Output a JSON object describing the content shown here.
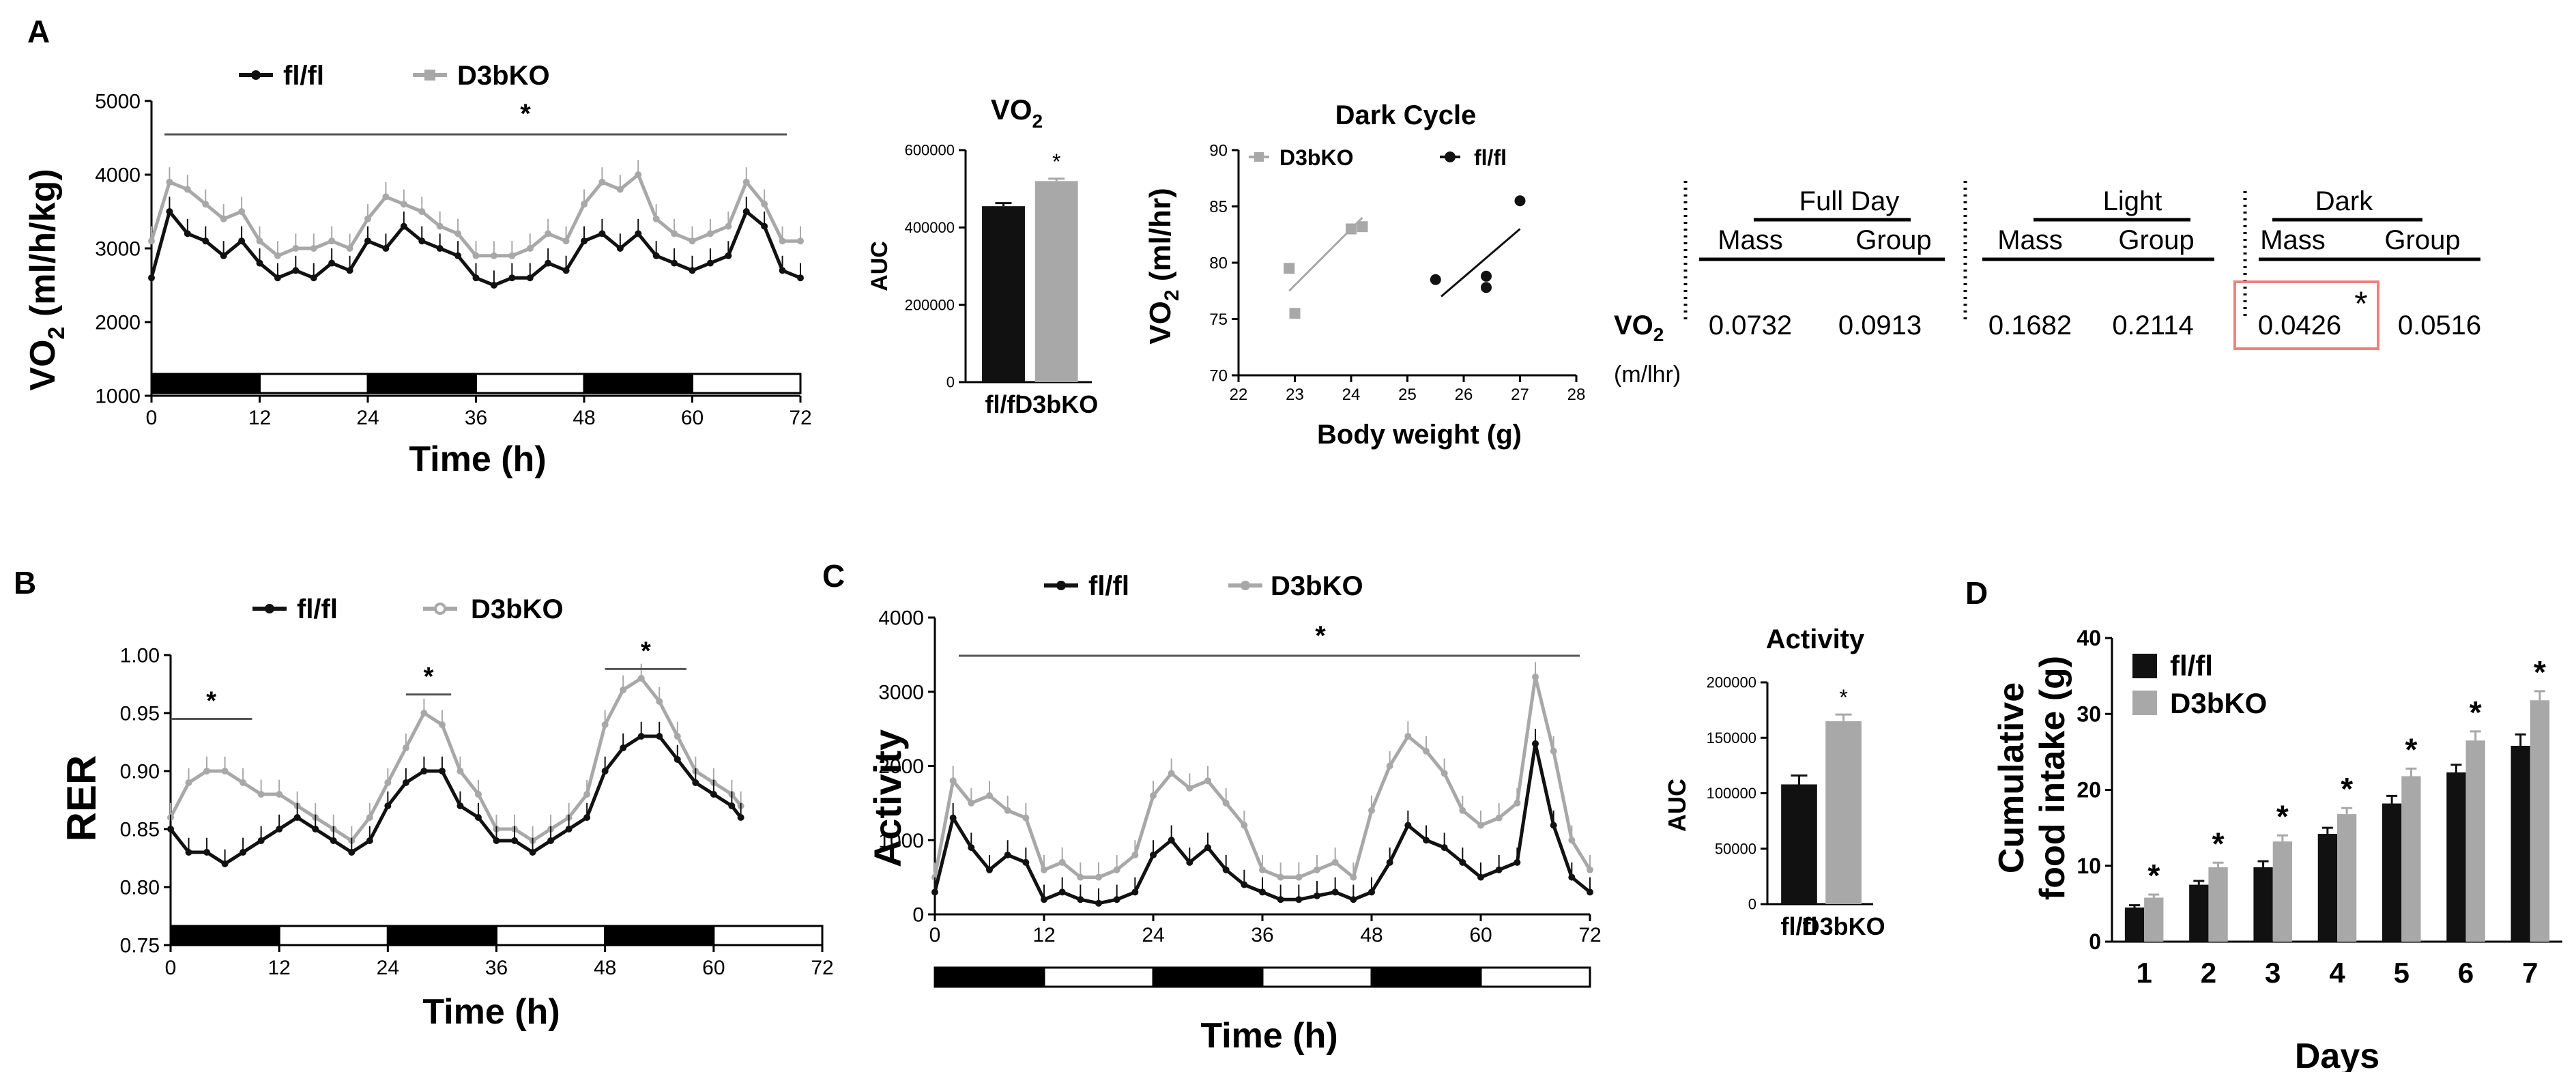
{
  "colors": {
    "flfl": "#111111",
    "d3bko": "#a8a8a8",
    "highlight": "#f08080"
  },
  "panel_letters": {
    "a": "A",
    "b": "B",
    "c": "C",
    "d": "D"
  },
  "chart_data": [
    {
      "id": "vo2_time",
      "type": "line",
      "ylabel": "VO2 (ml/h/kg)",
      "ylabel_base": "VO",
      "ylabel_sub": "2",
      "ylabel_rest": " (ml/h/kg)",
      "xlabel": "Time (h)",
      "xlim": [
        0,
        72
      ],
      "ylim": [
        1000,
        5000
      ],
      "xticks": [
        0,
        12,
        24,
        36,
        48,
        60,
        72
      ],
      "yticks": [
        1000,
        2000,
        3000,
        4000,
        5000
      ],
      "legend": [
        "fl/fl",
        "D3bKO"
      ],
      "significance": "*",
      "sig_span": [
        2,
        70
      ],
      "light_dark_bar": [
        "dark",
        "light",
        "dark",
        "light",
        "dark",
        "light"
      ],
      "series": [
        {
          "name": "fl/fl",
          "x": [
            0,
            2,
            4,
            6,
            8,
            10,
            12,
            14,
            16,
            18,
            20,
            22,
            24,
            26,
            28,
            30,
            32,
            34,
            36,
            38,
            40,
            42,
            44,
            46,
            48,
            50,
            52,
            54,
            56,
            58,
            60,
            62,
            64,
            66,
            68,
            70,
            72
          ],
          "y": [
            2600,
            3500,
            3200,
            3100,
            2900,
            3100,
            2800,
            2600,
            2700,
            2600,
            2800,
            2700,
            3100,
            3000,
            3300,
            3100,
            3000,
            2900,
            2600,
            2500,
            2600,
            2600,
            2800,
            2700,
            3100,
            3200,
            3000,
            3200,
            2900,
            2800,
            2700,
            2800,
            2900,
            3500,
            3300,
            2700,
            2600
          ]
        },
        {
          "name": "D3bKO",
          "x": [
            0,
            2,
            4,
            6,
            8,
            10,
            12,
            14,
            16,
            18,
            20,
            22,
            24,
            26,
            28,
            30,
            32,
            34,
            36,
            38,
            40,
            42,
            44,
            46,
            48,
            50,
            52,
            54,
            56,
            58,
            60,
            62,
            64,
            66,
            68,
            70,
            72
          ],
          "y": [
            3100,
            3900,
            3800,
            3600,
            3400,
            3500,
            3100,
            2900,
            3000,
            3000,
            3100,
            3000,
            3400,
            3700,
            3600,
            3500,
            3300,
            3200,
            2900,
            2900,
            2900,
            3000,
            3200,
            3100,
            3600,
            3900,
            3800,
            4000,
            3400,
            3200,
            3100,
            3200,
            3300,
            3900,
            3600,
            3100,
            3100
          ]
        }
      ]
    },
    {
      "id": "vo2_auc",
      "type": "bar",
      "title": "VO2",
      "title_base": "VO",
      "title_sub": "2",
      "ylabel": "AUC",
      "ylim": [
        0,
        600000
      ],
      "yticks": [
        0,
        200000,
        400000,
        600000
      ],
      "categories": [
        "fl/fl",
        "D3bKO"
      ],
      "values": [
        455000,
        520000
      ],
      "errors": [
        8000,
        6000
      ],
      "significance": "*"
    },
    {
      "id": "vo2_bodyweight",
      "type": "scatter",
      "title": "Dark Cycle",
      "ylabel": "VO2 (ml/hr)",
      "ylabel_base": "VO",
      "ylabel_sub": "2",
      "ylabel_rest": " (ml/hr)",
      "xlabel": "Body weight (g)",
      "xlim": [
        22,
        28
      ],
      "ylim": [
        70,
        90
      ],
      "xticks": [
        22,
        23,
        24,
        25,
        26,
        27,
        28
      ],
      "yticks": [
        70,
        75,
        80,
        85,
        90
      ],
      "legend": [
        "D3bKO",
        "fl/fl"
      ],
      "series": [
        {
          "name": "D3bKO",
          "x": [
            22.9,
            23.0,
            24.0,
            24.2
          ],
          "y": [
            79.5,
            75.5,
            83.0,
            83.2
          ],
          "fit": [
            [
              22.9,
              77.5
            ],
            [
              24.2,
              84.0
            ]
          ]
        },
        {
          "name": "fl/fl",
          "x": [
            25.5,
            26.4,
            26.4,
            27.0
          ],
          "y": [
            78.5,
            77.8,
            78.8,
            85.5
          ],
          "fit": [
            [
              25.6,
              77.0
            ],
            [
              27.0,
              83.0
            ]
          ]
        }
      ]
    },
    {
      "id": "rer_time",
      "type": "line",
      "ylabel": "RER",
      "xlabel": "Time (h)",
      "xlim": [
        0,
        72
      ],
      "ylim": [
        0.75,
        1.0
      ],
      "xticks": [
        0,
        12,
        24,
        36,
        48,
        60,
        72
      ],
      "yticks": [
        "0.75",
        "0.80",
        "0.85",
        "0.90",
        "0.95",
        "1.00"
      ],
      "legend": [
        "fl/fl",
        "D3bKO"
      ],
      "significance": [
        {
          "label": "*",
          "span": [
            0,
            9
          ]
        },
        {
          "label": "*",
          "span": [
            26,
            31
          ]
        },
        {
          "label": "*",
          "span": [
            48,
            57
          ]
        }
      ],
      "light_dark_bar": [
        "dark",
        "light",
        "dark",
        "light",
        "dark",
        "light"
      ],
      "series": [
        {
          "name": "fl/fl",
          "x": [
            0,
            2,
            4,
            6,
            8,
            10,
            12,
            14,
            16,
            18,
            20,
            22,
            24,
            26,
            28,
            30,
            32,
            34,
            36,
            38,
            40,
            42,
            44,
            46,
            48,
            50,
            52,
            54,
            56,
            58,
            60,
            62,
            63
          ],
          "y": [
            0.85,
            0.83,
            0.83,
            0.82,
            0.83,
            0.84,
            0.85,
            0.86,
            0.85,
            0.84,
            0.83,
            0.84,
            0.87,
            0.89,
            0.9,
            0.9,
            0.87,
            0.86,
            0.84,
            0.84,
            0.83,
            0.84,
            0.85,
            0.86,
            0.9,
            0.92,
            0.93,
            0.93,
            0.91,
            0.89,
            0.88,
            0.87,
            0.86
          ]
        },
        {
          "name": "D3bKO",
          "x": [
            0,
            2,
            4,
            6,
            8,
            10,
            12,
            14,
            16,
            18,
            20,
            22,
            24,
            26,
            28,
            30,
            32,
            34,
            36,
            38,
            40,
            42,
            44,
            46,
            48,
            50,
            52,
            54,
            56,
            58,
            60,
            62,
            63
          ],
          "y": [
            0.86,
            0.89,
            0.9,
            0.9,
            0.89,
            0.88,
            0.88,
            0.87,
            0.86,
            0.85,
            0.84,
            0.86,
            0.89,
            0.92,
            0.95,
            0.94,
            0.9,
            0.88,
            0.85,
            0.85,
            0.84,
            0.85,
            0.86,
            0.88,
            0.94,
            0.97,
            0.98,
            0.96,
            0.93,
            0.9,
            0.89,
            0.88,
            0.87
          ]
        }
      ]
    },
    {
      "id": "activity_time",
      "type": "line",
      "ylabel": "Activity",
      "xlabel": "Time (h)",
      "xlim": [
        0,
        72
      ],
      "ylim": [
        0,
        4000
      ],
      "xticks": [
        0,
        12,
        24,
        36,
        48,
        60,
        72
      ],
      "yticks": [
        0,
        1000,
        2000,
        3000,
        4000
      ],
      "legend": [
        "fl/fl",
        "D3bKO"
      ],
      "significance": "*",
      "sig_span": [
        2,
        70
      ],
      "light_dark_bar": [
        "dark",
        "light",
        "dark",
        "light",
        "dark",
        "light"
      ],
      "series": [
        {
          "name": "fl/fl",
          "x": [
            0,
            2,
            4,
            6,
            8,
            10,
            12,
            14,
            16,
            18,
            20,
            22,
            24,
            26,
            28,
            30,
            32,
            34,
            36,
            38,
            40,
            42,
            44,
            46,
            48,
            50,
            52,
            54,
            56,
            58,
            60,
            62,
            64,
            66,
            68,
            70,
            72
          ],
          "y": [
            300,
            1300,
            900,
            600,
            800,
            700,
            200,
            300,
            200,
            150,
            200,
            300,
            800,
            1000,
            700,
            900,
            600,
            400,
            300,
            200,
            200,
            250,
            300,
            200,
            300,
            700,
            1200,
            1000,
            900,
            700,
            500,
            600,
            700,
            2300,
            1200,
            500,
            300
          ]
        },
        {
          "name": "D3bKO",
          "x": [
            0,
            2,
            4,
            6,
            8,
            10,
            12,
            14,
            16,
            18,
            20,
            22,
            24,
            26,
            28,
            30,
            32,
            34,
            36,
            38,
            40,
            42,
            44,
            46,
            48,
            50,
            52,
            54,
            56,
            58,
            60,
            62,
            64,
            66,
            68,
            70,
            72
          ],
          "y": [
            500,
            1800,
            1500,
            1600,
            1400,
            1300,
            600,
            700,
            500,
            500,
            600,
            800,
            1600,
            1900,
            1700,
            1800,
            1500,
            1200,
            600,
            500,
            500,
            600,
            700,
            500,
            1400,
            2000,
            2400,
            2200,
            1900,
            1400,
            1200,
            1300,
            1500,
            3200,
            2200,
            1000,
            600
          ]
        }
      ]
    },
    {
      "id": "activity_auc",
      "type": "bar",
      "title": "Activity",
      "ylabel": "AUC",
      "ylim": [
        0,
        200000
      ],
      "yticks": [
        0,
        50000,
        100000,
        150000,
        200000
      ],
      "categories": [
        "fl/fl",
        "D3bKO"
      ],
      "values": [
        108000,
        165000
      ],
      "errors": [
        8000,
        6000
      ],
      "significance": "*"
    },
    {
      "id": "food_intake",
      "type": "bar",
      "ylabel": "Cumulative food intake (g)",
      "ylabel_line1": "Cumulative",
      "ylabel_line2": "food intake (g)",
      "xlabel": "Days",
      "ylim": [
        0,
        40
      ],
      "yticks": [
        0,
        10,
        20,
        30,
        40
      ],
      "categories": [
        "1",
        "2",
        "3",
        "4",
        "5",
        "6",
        "7"
      ],
      "legend": [
        "fl/fl",
        "D3bKO"
      ],
      "series": [
        {
          "name": "fl/fl",
          "values": [
            4.5,
            7.5,
            9.8,
            14.2,
            18.2,
            22.3,
            25.8
          ],
          "errors": [
            0.3,
            0.5,
            0.8,
            0.8,
            1.0,
            1.0,
            1.5
          ]
        },
        {
          "name": "D3bKO",
          "values": [
            5.8,
            9.8,
            13.2,
            16.8,
            21.8,
            26.5,
            31.8
          ],
          "errors": [
            0.4,
            0.6,
            0.8,
            0.8,
            1.0,
            1.2,
            1.2
          ]
        }
      ],
      "significance": [
        "*",
        "*",
        "*",
        "*",
        "*",
        "*",
        "*"
      ]
    },
    {
      "id": "vo2_ancova_table",
      "type": "table",
      "row_label": "VO2",
      "row_label_base": "VO",
      "row_label_sub": "2",
      "row_unit": "(m/lhr)",
      "groups": [
        "Full Day",
        "Light",
        "Dark"
      ],
      "columns": [
        "Mass",
        "Group"
      ],
      "values": [
        "0.0732",
        "0.0913",
        "0.1682",
        "0.2114",
        "0.0426",
        "0.0516"
      ],
      "highlight_index": 4,
      "highlight_mark": "*"
    }
  ]
}
